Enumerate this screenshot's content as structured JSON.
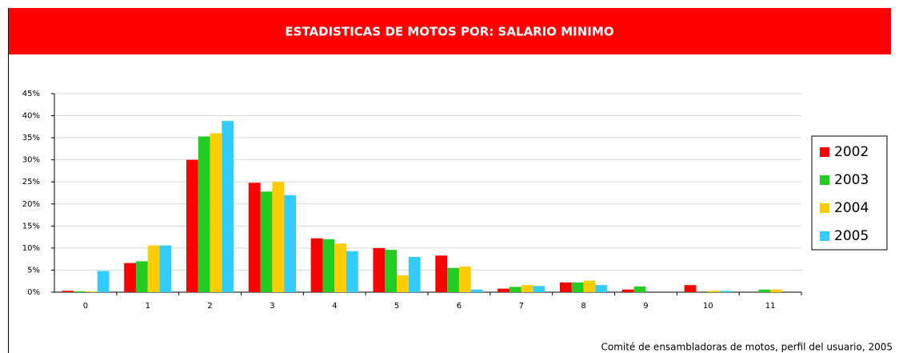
{
  "chart_data": {
    "type": "bar",
    "title": "ESTADISTICAS DE MOTOS POR: SALARIO MINIMO",
    "source": "Comité de ensambladoras de motos, perfil del usuario, 2005",
    "categories": [
      "0",
      "1",
      "2",
      "3",
      "4",
      "5",
      "6",
      "7",
      "8",
      "9",
      "10",
      "11"
    ],
    "series": [
      {
        "name": "2002",
        "color": "#ff0000",
        "values": [
          0.3,
          6.6,
          30,
          24.8,
          12.2,
          10,
          8.3,
          0.8,
          2.2,
          0.6,
          1.6,
          0
        ]
      },
      {
        "name": "2003",
        "color": "#22cc22",
        "values": [
          0.2,
          7.0,
          35.3,
          22.8,
          12,
          9.6,
          5.5,
          1.2,
          2.2,
          1.3,
          0,
          0.6
        ]
      },
      {
        "name": "2004",
        "color": "#ffcc00",
        "values": [
          0.2,
          10.6,
          36,
          25,
          11,
          3.8,
          5.8,
          1.6,
          2.6,
          0,
          0.3,
          0.6
        ]
      },
      {
        "name": "2005",
        "color": "#33ccff",
        "values": [
          4.8,
          10.6,
          38.8,
          22,
          9.3,
          8,
          0.6,
          1.4,
          1.6,
          0,
          0.3,
          0
        ]
      }
    ],
    "ylim": [
      0,
      45
    ],
    "yticks": [
      {
        "value": 0,
        "label": "0%"
      },
      {
        "value": 5,
        "label": "5%"
      },
      {
        "value": 10,
        "label": "10%"
      },
      {
        "value": 15,
        "label": "15%"
      },
      {
        "value": 20,
        "label": "20%"
      },
      {
        "value": 25,
        "label": "25%"
      },
      {
        "value": 30,
        "label": "30%"
      },
      {
        "value": 35,
        "label": "35%"
      },
      {
        "value": 40,
        "label": "40%"
      },
      {
        "value": 45,
        "label": "45%"
      }
    ],
    "grid": true,
    "legend": "right"
  }
}
